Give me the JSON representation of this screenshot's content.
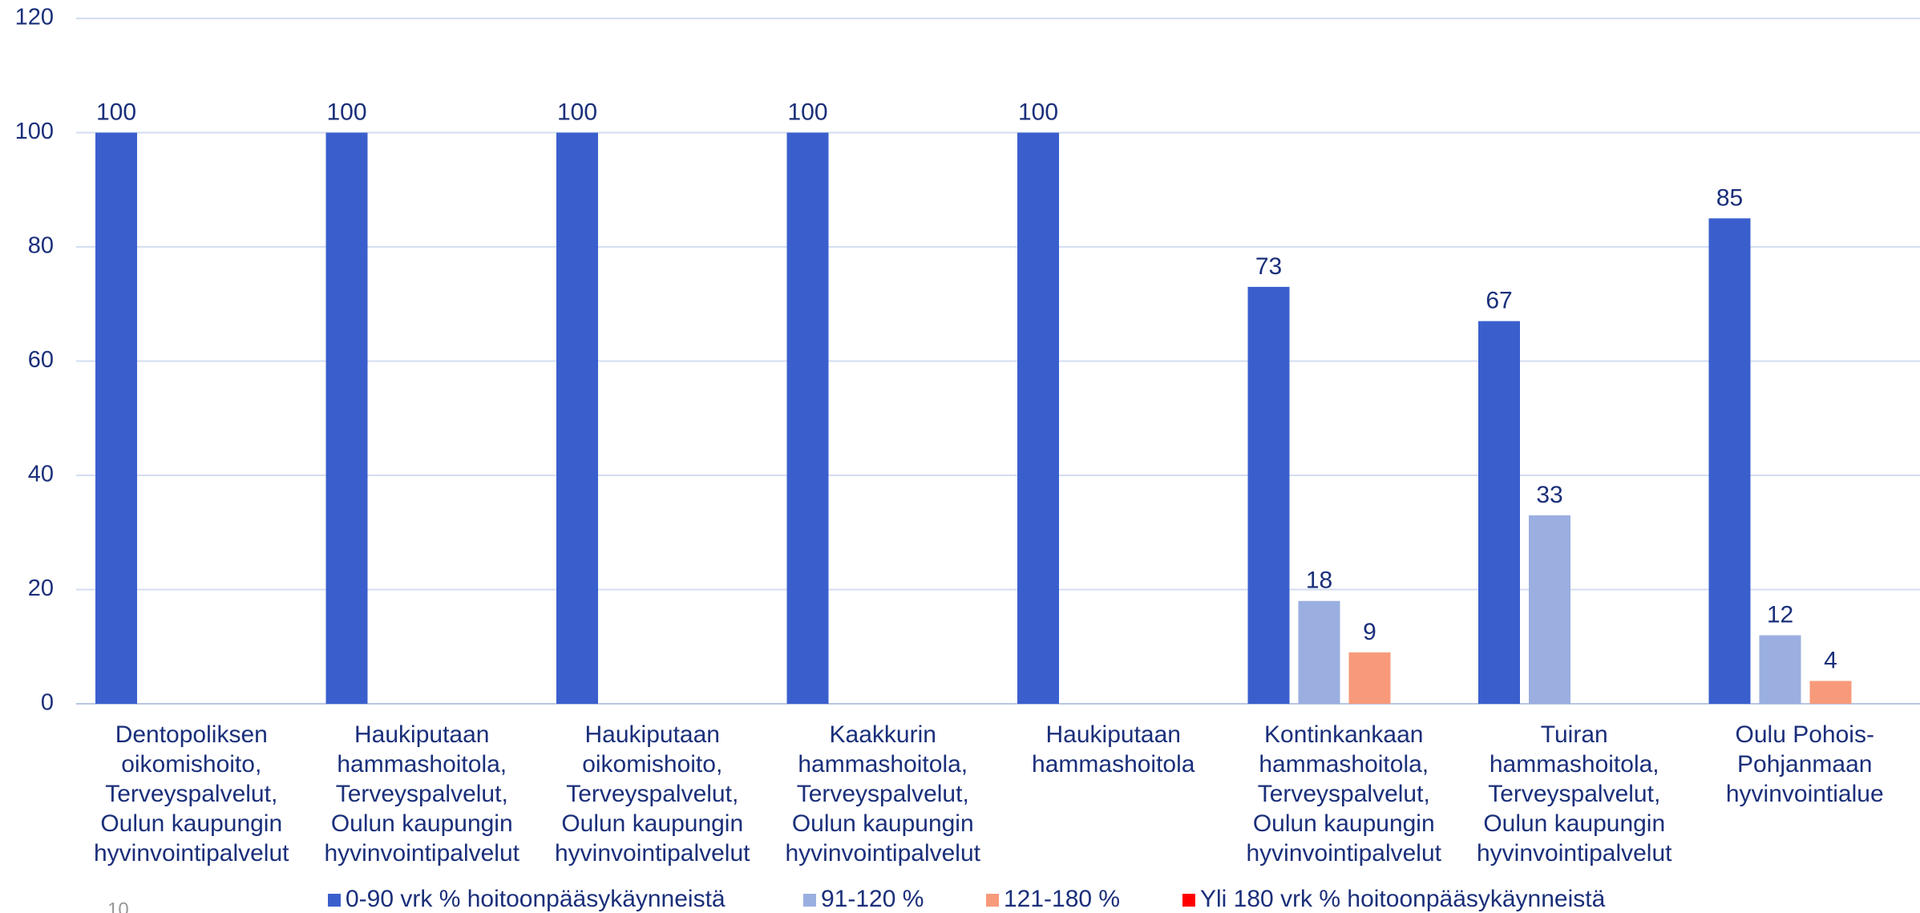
{
  "chart_data": {
    "type": "bar",
    "categories": [
      "Dentopoliksen oikomishoito, Terveyspalvelut, Oulun kaupungin hyvinvointipalvelut",
      "Haukiputaan hammashoitola, Terveyspalvelut, Oulun kaupungin hyvinvointipalvelut",
      "Haukiputaan oikomishoito, Terveyspalvelut, Oulun kaupungin hyvinvointipalvelut",
      "Kaakkurin hammashoitola, Terveyspalvelut, Oulun kaupungin hyvinvointipalvelut",
      "Haukiputaan hammashoitola",
      "Kontinkankaan hammashoitola, Terveyspalvelut, Oulun kaupungin hyvinvointipalvelut",
      "Tuiran hammashoitola, Terveyspalvelut, Oulun kaupungin hyvinvointipalvelut",
      "Oulu Pohois-Pohjanmaan hyvinvointialue"
    ],
    "series": [
      {
        "name": "0-90 vrk % hoitoonpääsykäynneistä",
        "color": "#3a5fcd",
        "values": [
          100,
          100,
          100,
          100,
          100,
          73,
          67,
          85
        ]
      },
      {
        "name": "91-120 %",
        "color": "#9aaee0",
        "values": [
          null,
          null,
          null,
          null,
          null,
          18,
          33,
          12
        ]
      },
      {
        "name": "121-180 %",
        "color": "#f79a7a",
        "values": [
          null,
          null,
          null,
          null,
          null,
          9,
          null,
          4
        ]
      },
      {
        "name": "Yli 180 vrk % hoitoonpääsykäynneistä",
        "color": "#ff0000",
        "values": [
          null,
          null,
          null,
          null,
          null,
          null,
          null,
          null
        ]
      }
    ],
    "ylim": [
      0,
      120
    ],
    "yticks": [
      0,
      20,
      40,
      60,
      80,
      100,
      120
    ],
    "grid": true,
    "legend": "bottom",
    "page_number": "10"
  }
}
